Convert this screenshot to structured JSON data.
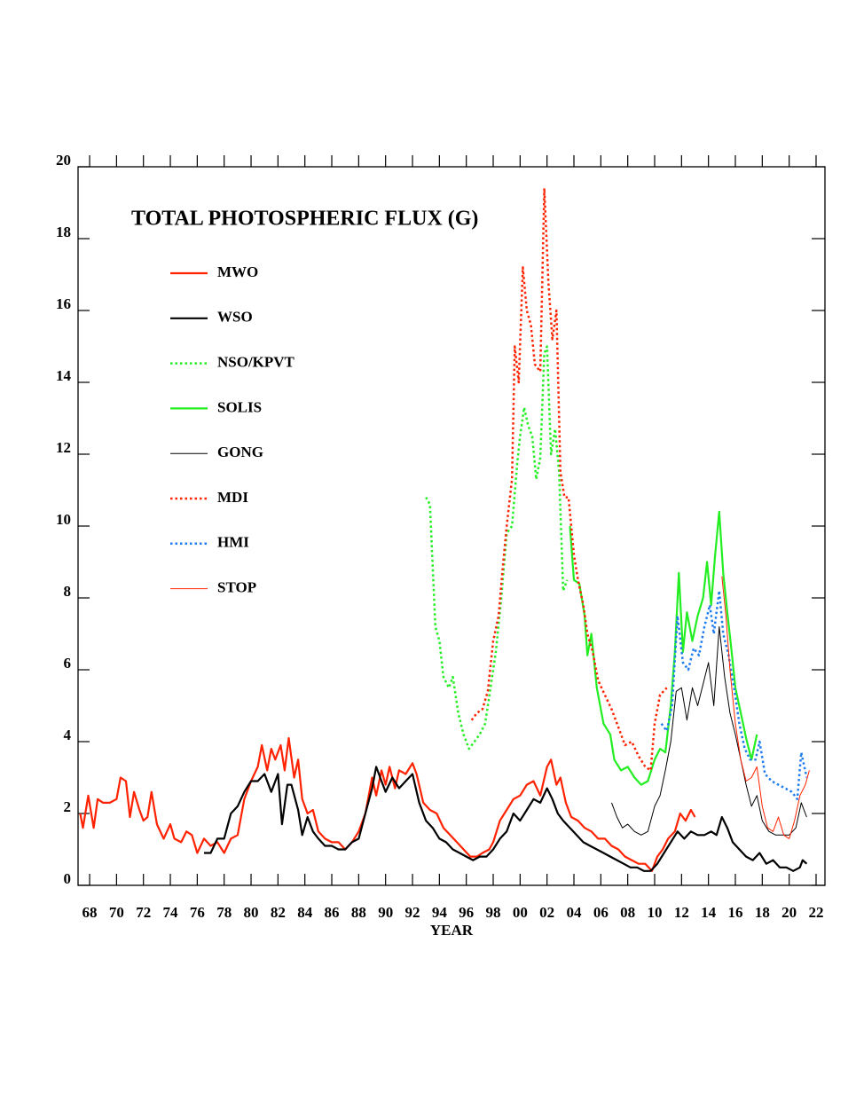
{
  "chart_data": {
    "type": "line",
    "title": "TOTAL PHOTOSPHERIC FLUX (G)",
    "x_label": "YEAR",
    "xlim": [
      1967.14,
      2022.66
    ],
    "ylim": [
      0,
      20
    ],
    "xticks": [
      {
        "value": 1968,
        "label": "68"
      },
      {
        "value": 1970,
        "label": "70"
      },
      {
        "value": 1972,
        "label": "72"
      },
      {
        "value": 1974,
        "label": "74"
      },
      {
        "value": 1976,
        "label": "76"
      },
      {
        "value": 1978,
        "label": "78"
      },
      {
        "value": 1980,
        "label": "80"
      },
      {
        "value": 1982,
        "label": "82"
      },
      {
        "value": 1984,
        "label": "84"
      },
      {
        "value": 1986,
        "label": "86"
      },
      {
        "value": 1988,
        "label": "88"
      },
      {
        "value": 1990,
        "label": "90"
      },
      {
        "value": 1992,
        "label": "92"
      },
      {
        "value": 1994,
        "label": "94"
      },
      {
        "value": 1996,
        "label": "96"
      },
      {
        "value": 1998,
        "label": "98"
      },
      {
        "value": 2000,
        "label": "00"
      },
      {
        "value": 2002,
        "label": "02"
      },
      {
        "value": 2004,
        "label": "04"
      },
      {
        "value": 2006,
        "label": "06"
      },
      {
        "value": 2008,
        "label": "08"
      },
      {
        "value": 2010,
        "label": "10"
      },
      {
        "value": 2012,
        "label": "12"
      },
      {
        "value": 2014,
        "label": "14"
      },
      {
        "value": 2016,
        "label": "16"
      },
      {
        "value": 2018,
        "label": "18"
      },
      {
        "value": 2020,
        "label": "20"
      },
      {
        "value": 2022,
        "label": "22"
      }
    ],
    "yticks": [
      0,
      2,
      4,
      6,
      8,
      10,
      12,
      14,
      16,
      18,
      20
    ],
    "grid": false,
    "legend": "upper left",
    "series": [
      {
        "name": "MWO",
        "color": "#ff2200",
        "style": "solid",
        "width": 2.2,
        "x": [
          1967.3,
          1967.5,
          1967.9,
          1968.3,
          1968.6,
          1969.0,
          1969.5,
          1970.0,
          1970.3,
          1970.7,
          1971.0,
          1971.3,
          1971.7,
          1972.0,
          1972.3,
          1972.6,
          1973.0,
          1973.5,
          1974.0,
          1974.3,
          1974.8,
          1975.2,
          1975.6,
          1976.0,
          1976.5,
          1977.0,
          1977.5,
          1978.0,
          1978.5,
          1979.0,
          1979.5,
          1980.0,
          1980.5,
          1980.8,
          1981.2,
          1981.5,
          1981.8,
          1982.2,
          1982.5,
          1982.8,
          1983.2,
          1983.5,
          1983.8,
          1984.2,
          1984.6,
          1985.0,
          1985.5,
          1986.0,
          1986.5,
          1987.0,
          1987.5,
          1988.0,
          1988.5,
          1989.0,
          1989.3,
          1989.7,
          1990.0,
          1990.3,
          1990.7,
          1991.0,
          1991.5,
          1992.0,
          1992.3,
          1992.8,
          1993.3,
          1993.8,
          1994.3,
          1994.8,
          1995.3,
          1995.8,
          1996.3,
          1996.8,
          1997.2,
          1997.7,
          1998.0,
          1998.5,
          1999.0,
          1999.5,
          2000.0,
          2000.5,
          2001.0,
          2001.5,
          2002.0,
          2002.3,
          2002.7,
          2003.0,
          2003.4,
          2003.8,
          2004.3,
          2004.8,
          2005.3,
          2005.8,
          2006.3,
          2006.8,
          2007.3,
          2007.8,
          2008.3,
          2008.8,
          2009.3,
          2009.8,
          2010.2,
          2010.6,
          2011.0,
          2011.5,
          2011.9,
          2012.3,
          2012.7,
          2013.0
        ],
        "values": [
          2.0,
          1.6,
          2.5,
          1.6,
          2.4,
          2.3,
          2.3,
          2.4,
          3.0,
          2.9,
          1.9,
          2.6,
          2.1,
          1.8,
          1.9,
          2.6,
          1.7,
          1.3,
          1.7,
          1.3,
          1.2,
          1.5,
          1.4,
          0.9,
          1.3,
          1.1,
          1.2,
          0.9,
          1.3,
          1.4,
          2.4,
          2.9,
          3.3,
          3.9,
          3.2,
          3.8,
          3.5,
          3.9,
          3.2,
          4.1,
          3.0,
          3.5,
          2.4,
          2.0,
          2.1,
          1.5,
          1.3,
          1.2,
          1.2,
          1.0,
          1.2,
          1.5,
          2.0,
          3.0,
          2.5,
          3.2,
          2.8,
          3.3,
          2.7,
          3.2,
          3.1,
          3.4,
          3.1,
          2.3,
          2.1,
          2.0,
          1.6,
          1.4,
          1.2,
          1.0,
          0.8,
          0.8,
          0.9,
          1.0,
          1.2,
          1.8,
          2.1,
          2.4,
          2.5,
          2.8,
          2.9,
          2.5,
          3.3,
          3.5,
          2.8,
          3.0,
          2.3,
          1.9,
          1.8,
          1.6,
          1.5,
          1.3,
          1.3,
          1.1,
          1.0,
          0.8,
          0.7,
          0.6,
          0.6,
          0.4,
          0.8,
          1.0,
          1.3,
          1.5,
          2.0,
          1.8,
          2.1,
          1.9
        ]
      },
      {
        "name": "WSO",
        "color": "#000000",
        "style": "solid",
        "width": 2.2,
        "x": [
          1976.5,
          1977.0,
          1977.5,
          1978.0,
          1978.5,
          1979.0,
          1979.5,
          1980.0,
          1980.5,
          1981.0,
          1981.5,
          1982.0,
          1982.3,
          1982.7,
          1983.0,
          1983.5,
          1983.8,
          1984.2,
          1984.6,
          1985.0,
          1985.5,
          1986.0,
          1986.5,
          1987.0,
          1987.5,
          1988.0,
          1988.5,
          1989.0,
          1989.3,
          1989.7,
          1990.0,
          1990.5,
          1991.0,
          1991.5,
          1992.0,
          1992.5,
          1993.0,
          1993.5,
          1994.0,
          1994.5,
          1995.0,
          1995.5,
          1996.0,
          1996.5,
          1997.0,
          1997.5,
          1998.0,
          1998.5,
          1999.0,
          1999.5,
          2000.0,
          2000.5,
          2001.0,
          2001.5,
          2002.0,
          2002.4,
          2002.8,
          2003.2,
          2003.7,
          2004.2,
          2004.7,
          2005.2,
          2005.7,
          2006.2,
          2006.7,
          2007.2,
          2007.7,
          2008.2,
          2008.7,
          2009.2,
          2009.7,
          2010.2,
          2010.7,
          2011.2,
          2011.7,
          2012.2,
          2012.7,
          2013.2,
          2013.7,
          2014.2,
          2014.6,
          2015.0,
          2015.4,
          2015.8,
          2016.3,
          2016.8,
          2017.3,
          2017.8,
          2018.3,
          2018.8,
          2019.3,
          2019.8,
          2020.3,
          2020.8,
          2021.0,
          2021.3
        ],
        "values": [
          0.9,
          0.9,
          1.3,
          1.3,
          2.0,
          2.2,
          2.6,
          2.9,
          2.9,
          3.1,
          2.6,
          3.1,
          1.7,
          2.8,
          2.8,
          2.1,
          1.4,
          1.9,
          1.5,
          1.3,
          1.1,
          1.1,
          1.0,
          1.0,
          1.2,
          1.3,
          2.0,
          2.7,
          3.3,
          2.9,
          2.6,
          3.0,
          2.7,
          2.9,
          3.1,
          2.3,
          1.8,
          1.6,
          1.3,
          1.2,
          1.0,
          0.9,
          0.8,
          0.7,
          0.8,
          0.8,
          1.0,
          1.3,
          1.5,
          2.0,
          1.8,
          2.1,
          2.4,
          2.3,
          2.7,
          2.4,
          2.0,
          1.8,
          1.6,
          1.4,
          1.2,
          1.1,
          1.0,
          0.9,
          0.8,
          0.7,
          0.6,
          0.5,
          0.5,
          0.4,
          0.4,
          0.6,
          0.9,
          1.2,
          1.5,
          1.3,
          1.5,
          1.4,
          1.4,
          1.5,
          1.4,
          1.9,
          1.6,
          1.2,
          1.0,
          0.8,
          0.7,
          0.9,
          0.6,
          0.7,
          0.5,
          0.5,
          0.4,
          0.5,
          0.7,
          0.6
        ]
      },
      {
        "name": "NSO/KPVT",
        "color": "#22ee22",
        "style": "dotted",
        "width": 2.5,
        "x": [
          1993.0,
          1993.3,
          1993.7,
          1994.0,
          1994.3,
          1994.7,
          1995.0,
          1995.4,
          1995.8,
          1996.2,
          1996.6,
          1997.0,
          1997.4,
          1997.8,
          1998.2,
          1998.6,
          1999.0,
          1999.4,
          1999.8,
          2000.0,
          2000.3,
          2000.6,
          2000.9,
          2001.2,
          2001.5,
          2001.8,
          2002.0,
          2002.3,
          2002.6,
          2002.9,
          2003.2,
          2003.5
        ],
        "values": [
          10.8,
          10.6,
          7.2,
          6.8,
          5.8,
          5.5,
          5.8,
          4.8,
          4.2,
          3.8,
          4.0,
          4.2,
          4.5,
          5.5,
          6.5,
          8.0,
          9.8,
          10.0,
          11.8,
          12.5,
          13.3,
          12.8,
          12.5,
          11.3,
          11.9,
          14.8,
          15.0,
          12.0,
          12.7,
          11.5,
          8.2,
          8.5
        ]
      },
      {
        "name": "SOLIS",
        "color": "#22ee22",
        "style": "solid",
        "width": 2.2,
        "x": [
          2003.7,
          2004.0,
          2004.4,
          2004.8,
          2005.0,
          2005.3,
          2005.7,
          2006.2,
          2006.7,
          2007.0,
          2007.5,
          2008.0,
          2008.5,
          2009.0,
          2009.5,
          2010.0,
          2010.4,
          2010.8,
          2011.2,
          2011.5,
          2011.8,
          2012.1,
          2012.4,
          2012.8,
          2013.2,
          2013.6,
          2013.9,
          2014.2,
          2014.5,
          2014.8,
          2015.1,
          2015.4,
          2015.7,
          2016.0,
          2016.4,
          2016.8,
          2017.2,
          2017.6
        ],
        "values": [
          10.0,
          8.5,
          8.4,
          7.5,
          6.4,
          7.0,
          5.5,
          4.5,
          4.2,
          3.5,
          3.2,
          3.3,
          3.0,
          2.8,
          2.9,
          3.5,
          3.8,
          3.7,
          5.0,
          6.5,
          8.7,
          6.5,
          7.6,
          6.8,
          7.5,
          8.0,
          9.0,
          7.8,
          9.2,
          10.4,
          8.7,
          7.6,
          6.6,
          5.5,
          4.8,
          4.1,
          3.5,
          4.2
        ]
      },
      {
        "name": "GONG",
        "color": "#000000",
        "style": "solid",
        "width": 1,
        "x": [
          2006.8,
          2007.2,
          2007.6,
          2008.0,
          2008.5,
          2009.0,
          2009.5,
          2010.0,
          2010.4,
          2010.8,
          2011.2,
          2011.6,
          2012.0,
          2012.4,
          2012.8,
          2013.2,
          2013.6,
          2014.0,
          2014.4,
          2014.8,
          2015.2,
          2015.6,
          2016.0,
          2016.4,
          2016.8,
          2017.2,
          2017.6,
          2018.0,
          2018.5,
          2019.0,
          2019.5,
          2020.0,
          2020.5,
          2020.9,
          2021.3
        ],
        "values": [
          2.3,
          1.9,
          1.6,
          1.7,
          1.5,
          1.4,
          1.5,
          2.2,
          2.5,
          3.2,
          4.0,
          5.4,
          5.5,
          4.6,
          5.5,
          5.0,
          5.6,
          6.2,
          5.0,
          7.2,
          5.8,
          4.8,
          4.2,
          3.5,
          2.8,
          2.2,
          2.5,
          1.8,
          1.5,
          1.4,
          1.4,
          1.4,
          1.6,
          2.3,
          1.9
        ]
      },
      {
        "name": "MDI",
        "color": "#ff2200",
        "style": "dotted",
        "width": 2.5,
        "x": [
          1996.4,
          1996.8,
          1997.2,
          1997.6,
          1998.0,
          1998.4,
          1998.7,
          1999.0,
          1999.4,
          1999.6,
          1999.9,
          2000.2,
          2000.5,
          2000.8,
          2001.1,
          2001.5,
          2001.8,
          2002.1,
          2002.4,
          2002.7,
          2003.0,
          2003.3,
          2003.6,
          2004.0,
          2004.3,
          2004.7,
          2005.0,
          2005.4,
          2005.8,
          2006.3,
          2006.8,
          2007.3,
          2007.8,
          2008.3,
          2008.8,
          2009.3,
          2009.7,
          2010.0,
          2010.4,
          2010.9
        ],
        "values": [
          4.6,
          4.8,
          4.9,
          5.4,
          6.8,
          7.5,
          8.8,
          10.0,
          11.3,
          15.0,
          14.0,
          17.2,
          16.0,
          15.6,
          14.5,
          14.3,
          19.4,
          16.8,
          15.2,
          16.0,
          11.5,
          10.8,
          10.8,
          9.2,
          8.5,
          7.8,
          7.0,
          6.5,
          5.7,
          5.3,
          4.9,
          4.4,
          3.9,
          4.0,
          3.6,
          3.3,
          3.2,
          4.5,
          5.3,
          5.5
        ]
      },
      {
        "name": "HMI",
        "color": "#1e7cf0",
        "style": "dotted",
        "width": 2.5,
        "x": [
          2010.5,
          2010.9,
          2011.3,
          2011.7,
          2012.1,
          2012.5,
          2012.9,
          2013.3,
          2013.7,
          2014.1,
          2014.4,
          2014.8,
          2015.1,
          2015.5,
          2015.9,
          2016.3,
          2016.7,
          2017.1,
          2017.5,
          2017.8,
          2018.2,
          2018.7,
          2019.2,
          2019.7,
          2020.2,
          2020.6,
          2020.9,
          2021.3
        ],
        "values": [
          4.5,
          4.3,
          5.0,
          7.5,
          6.2,
          6.0,
          6.6,
          6.4,
          7.2,
          7.8,
          7.0,
          8.2,
          7.0,
          6.4,
          5.5,
          4.5,
          3.8,
          3.5,
          3.5,
          4.0,
          3.1,
          2.9,
          2.8,
          2.7,
          2.6,
          2.4,
          3.7,
          3.0
        ]
      },
      {
        "name": "STOP",
        "color": "#ff2200",
        "style": "solid",
        "width": 1,
        "x": [
          2015.0,
          2015.3,
          2015.6,
          2016.0,
          2016.4,
          2016.8,
          2017.2,
          2017.6,
          2018.0,
          2018.4,
          2018.8,
          2019.2,
          2019.6,
          2020.0,
          2020.4,
          2020.8,
          2021.2,
          2021.5
        ],
        "values": [
          8.6,
          7.5,
          6.0,
          4.5,
          3.5,
          2.9,
          3.0,
          3.3,
          2.2,
          1.6,
          1.5,
          1.9,
          1.4,
          1.3,
          1.8,
          2.5,
          2.8,
          3.2
        ]
      }
    ]
  }
}
